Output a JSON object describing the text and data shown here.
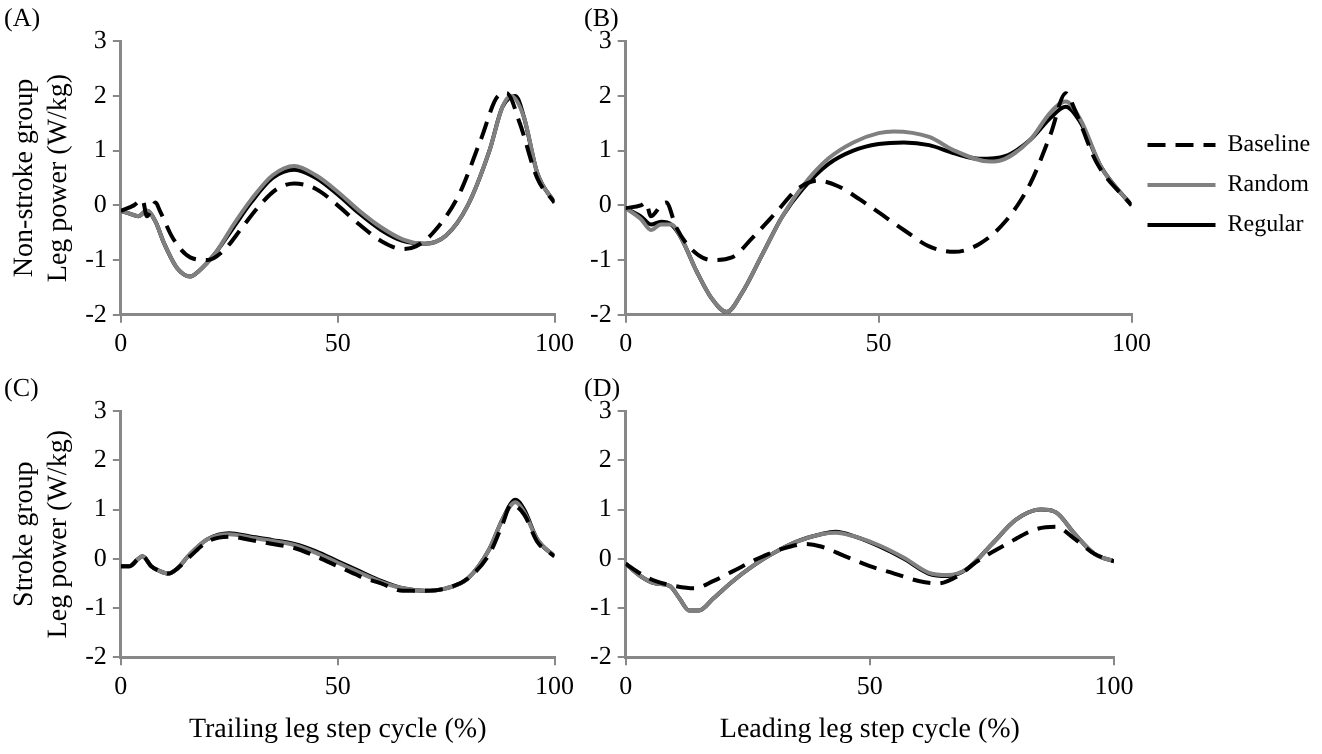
{
  "chart_data": [
    {
      "type": "line",
      "title": "(A)",
      "ylabel": "Non-stroke group\nLeg power (W/kg)",
      "xlim": [
        0,
        100
      ],
      "xticks": [
        0,
        50,
        100
      ],
      "ylim": [
        -2,
        3
      ],
      "yticks": [
        -2,
        -1,
        0,
        1,
        2,
        3
      ],
      "grid": false,
      "legend": false,
      "marker": "none",
      "series": [
        {
          "color": "#000000",
          "line_style": "dashed",
          "x": [
            0,
            3,
            5,
            6,
            8,
            9,
            12,
            16,
            20,
            24,
            28,
            32,
            36,
            40,
            45,
            50,
            55,
            60,
            65,
            68,
            72,
            78,
            83,
            87,
            89,
            92,
            96,
            100
          ],
          "values": [
            -0.1,
            0,
            0.1,
            -0.2,
            0.05,
            -0.1,
            -0.6,
            -0.95,
            -1.0,
            -0.8,
            -0.4,
            0,
            0.3,
            0.4,
            0.3,
            0,
            -0.35,
            -0.65,
            -0.8,
            -0.75,
            -0.5,
            0.2,
            1.2,
            2.0,
            2.05,
            1.5,
            0.5,
            0.05
          ]
        },
        {
          "color": "#808080",
          "line_style": "solid",
          "x": [
            0,
            2,
            4,
            6,
            8,
            10,
            13,
            16,
            18,
            22,
            26,
            30,
            35,
            40,
            45,
            50,
            55,
            60,
            65,
            70,
            75,
            80,
            85,
            88,
            90,
            93,
            96,
            100
          ],
          "values": [
            -0.1,
            -0.15,
            -0.2,
            -0.1,
            -0.3,
            -0.7,
            -1.15,
            -1.3,
            -1.2,
            -0.85,
            -0.35,
            0.1,
            0.55,
            0.72,
            0.55,
            0.25,
            -0.1,
            -0.4,
            -0.62,
            -0.7,
            -0.55,
            0,
            1.0,
            1.8,
            2.0,
            1.6,
            0.6,
            0.05
          ]
        },
        {
          "color": "#000000",
          "line_style": "solid",
          "x": [
            0,
            2,
            4,
            6,
            8,
            10,
            13,
            16,
            18,
            22,
            26,
            30,
            35,
            40,
            45,
            50,
            55,
            60,
            65,
            70,
            75,
            80,
            85,
            88,
            91,
            93,
            96,
            100
          ],
          "values": [
            -0.1,
            -0.15,
            -0.2,
            -0.1,
            -0.3,
            -0.7,
            -1.15,
            -1.3,
            -1.2,
            -0.85,
            -0.4,
            0.05,
            0.5,
            0.65,
            0.5,
            0.2,
            -0.15,
            -0.45,
            -0.65,
            -0.7,
            -0.55,
            0,
            1.0,
            1.8,
            2.0,
            1.6,
            0.6,
            0.05
          ]
        }
      ]
    },
    {
      "type": "line",
      "title": "(B)",
      "xlim": [
        0,
        100
      ],
      "xticks": [
        0,
        50,
        100
      ],
      "ylim": [
        -2,
        3
      ],
      "yticks": [
        -2,
        -1,
        0,
        1,
        2,
        3
      ],
      "grid": false,
      "legend": "right",
      "marker": "none",
      "series": [
        {
          "name": "Baseline",
          "color": "#000000",
          "line_style": "dashed",
          "x": [
            0,
            3,
            4,
            5,
            7,
            8,
            10,
            13,
            17,
            21,
            25,
            30,
            34,
            38,
            42,
            48,
            55,
            60,
            65,
            70,
            75,
            80,
            84,
            87,
            89,
            93,
            100
          ],
          "values": [
            -0.05,
            0,
            0.05,
            -0.2,
            0,
            0.05,
            -0.4,
            -0.8,
            -1.0,
            -0.95,
            -0.6,
            -0.1,
            0.3,
            0.45,
            0.35,
            0,
            -0.45,
            -0.75,
            -0.85,
            -0.7,
            -0.3,
            0.4,
            1.3,
            2.05,
            1.7,
            0.8,
            0
          ]
        },
        {
          "name": "Random",
          "color": "#808080",
          "line_style": "solid",
          "x": [
            0,
            3,
            5,
            7,
            9,
            11,
            14,
            17,
            20,
            23,
            27,
            31,
            35,
            40,
            45,
            50,
            53,
            60,
            65,
            72,
            75,
            80,
            84,
            87,
            90,
            94,
            100
          ],
          "values": [
            -0.05,
            -0.25,
            -0.45,
            -0.35,
            -0.35,
            -0.6,
            -1.2,
            -1.7,
            -1.95,
            -1.6,
            -0.9,
            -0.2,
            0.35,
            0.85,
            1.15,
            1.32,
            1.35,
            1.25,
            1.0,
            0.8,
            0.85,
            1.2,
            1.7,
            1.9,
            1.55,
            0.7,
            0
          ]
        },
        {
          "name": "Regular",
          "color": "#000000",
          "line_style": "solid",
          "x": [
            0,
            3,
            5,
            7,
            9,
            11,
            14,
            17,
            20,
            23,
            27,
            31,
            35,
            40,
            45,
            50,
            55,
            60,
            65,
            70,
            75,
            80,
            84,
            87,
            90,
            94,
            100
          ],
          "values": [
            -0.05,
            -0.2,
            -0.35,
            -0.3,
            -0.35,
            -0.6,
            -1.2,
            -1.7,
            -1.95,
            -1.6,
            -0.9,
            -0.2,
            0.3,
            0.75,
            1.0,
            1.12,
            1.15,
            1.1,
            0.95,
            0.85,
            0.9,
            1.2,
            1.6,
            1.8,
            1.5,
            0.7,
            0
          ]
        }
      ]
    },
    {
      "type": "line",
      "title": "(C)",
      "ylabel": "Stroke group\nLeg power (W/kg)",
      "xlabel": "Trailing leg step cycle (%)",
      "xlim": [
        0,
        100
      ],
      "xticks": [
        0,
        50,
        100
      ],
      "ylim": [
        -2,
        3
      ],
      "yticks": [
        -2,
        -1,
        0,
        1,
        2,
        3
      ],
      "grid": false,
      "legend": false,
      "marker": "none",
      "series": [
        {
          "color": "#000000",
          "line_style": "dashed",
          "x": [
            0,
            2,
            4,
            5,
            7,
            9,
            11,
            13,
            16,
            20,
            25,
            30,
            35,
            40,
            45,
            50,
            55,
            60,
            65,
            70,
            75,
            80,
            85,
            88,
            90,
            93,
            96,
            100
          ],
          "values": [
            -0.15,
            -0.15,
            0,
            0.05,
            -0.15,
            -0.25,
            -0.3,
            -0.2,
            0.05,
            0.35,
            0.45,
            0.38,
            0.3,
            0.22,
            0.05,
            -0.15,
            -0.35,
            -0.5,
            -0.65,
            -0.65,
            -0.6,
            -0.4,
            0.1,
            0.7,
            1.1,
            0.9,
            0.35,
            0.05
          ]
        },
        {
          "color": "#808080",
          "line_style": "solid",
          "x": [
            0,
            2,
            4,
            5,
            7,
            9,
            11,
            13,
            16,
            20,
            25,
            30,
            35,
            40,
            45,
            50,
            55,
            60,
            65,
            70,
            75,
            80,
            85,
            88,
            91,
            93,
            96,
            100
          ],
          "values": [
            -0.15,
            -0.15,
            0,
            0.05,
            -0.15,
            -0.25,
            -0.3,
            -0.2,
            0.1,
            0.4,
            0.5,
            0.43,
            0.36,
            0.28,
            0.12,
            -0.08,
            -0.28,
            -0.47,
            -0.6,
            -0.65,
            -0.6,
            -0.4,
            0.2,
            0.8,
            1.15,
            0.95,
            0.4,
            0.05
          ]
        },
        {
          "color": "#000000",
          "line_style": "solid",
          "x": [
            0,
            2,
            4,
            5,
            7,
            9,
            11,
            13,
            16,
            20,
            25,
            30,
            35,
            40,
            45,
            50,
            55,
            60,
            65,
            70,
            75,
            80,
            85,
            88,
            91,
            93,
            96,
            100
          ],
          "values": [
            -0.15,
            -0.15,
            0,
            0.05,
            -0.15,
            -0.25,
            -0.3,
            -0.2,
            0.1,
            0.4,
            0.52,
            0.45,
            0.38,
            0.3,
            0.15,
            -0.05,
            -0.25,
            -0.45,
            -0.6,
            -0.65,
            -0.6,
            -0.4,
            0.2,
            0.8,
            1.2,
            1.0,
            0.4,
            0.05
          ]
        }
      ]
    },
    {
      "type": "line",
      "title": "(D)",
      "xlabel": "Leading leg step cycle (%)",
      "xlim": [
        0,
        100
      ],
      "xticks": [
        0,
        50,
        100
      ],
      "ylim": [
        -2,
        3
      ],
      "yticks": [
        -2,
        -1,
        0,
        1,
        2,
        3
      ],
      "grid": false,
      "legend": false,
      "marker": "none",
      "series": [
        {
          "color": "#000000",
          "line_style": "dashed",
          "x": [
            0,
            3,
            6,
            10,
            14,
            18,
            22,
            27,
            32,
            37,
            40,
            45,
            50,
            55,
            60,
            64,
            68,
            72,
            78,
            84,
            88,
            92,
            96,
            100
          ],
          "values": [
            -0.1,
            -0.3,
            -0.45,
            -0.55,
            -0.6,
            -0.45,
            -0.25,
            0,
            0.2,
            0.3,
            0.25,
            0.05,
            -0.15,
            -0.3,
            -0.45,
            -0.5,
            -0.35,
            -0.05,
            0.3,
            0.6,
            0.65,
            0.4,
            0.1,
            -0.05
          ]
        },
        {
          "color": "#808080",
          "line_style": "solid",
          "x": [
            0,
            3,
            6,
            9,
            11,
            13,
            15,
            18,
            22,
            26,
            30,
            35,
            40,
            43,
            47,
            52,
            57,
            62,
            66,
            70,
            75,
            80,
            85,
            88,
            92,
            96,
            100
          ],
          "values": [
            -0.1,
            -0.35,
            -0.5,
            -0.55,
            -0.8,
            -1.05,
            -1.05,
            -0.8,
            -0.45,
            -0.15,
            0.1,
            0.35,
            0.5,
            0.53,
            0.45,
            0.27,
            0.02,
            -0.28,
            -0.33,
            -0.2,
            0.3,
            0.8,
            1.0,
            0.95,
            0.5,
            0.1,
            -0.05
          ]
        },
        {
          "color": "#000000",
          "line_style": "solid",
          "x": [
            0,
            3,
            6,
            9,
            11,
            13,
            15,
            18,
            22,
            26,
            30,
            35,
            40,
            43,
            47,
            52,
            57,
            62,
            66,
            70,
            75,
            80,
            85,
            88,
            92,
            96,
            100
          ],
          "values": [
            -0.1,
            -0.35,
            -0.5,
            -0.55,
            -0.8,
            -1.05,
            -1.05,
            -0.8,
            -0.45,
            -0.15,
            0.1,
            0.35,
            0.5,
            0.55,
            0.45,
            0.25,
            0,
            -0.3,
            -0.35,
            -0.2,
            0.3,
            0.8,
            1.0,
            0.95,
            0.5,
            0.1,
            -0.05
          ]
        }
      ]
    }
  ]
}
